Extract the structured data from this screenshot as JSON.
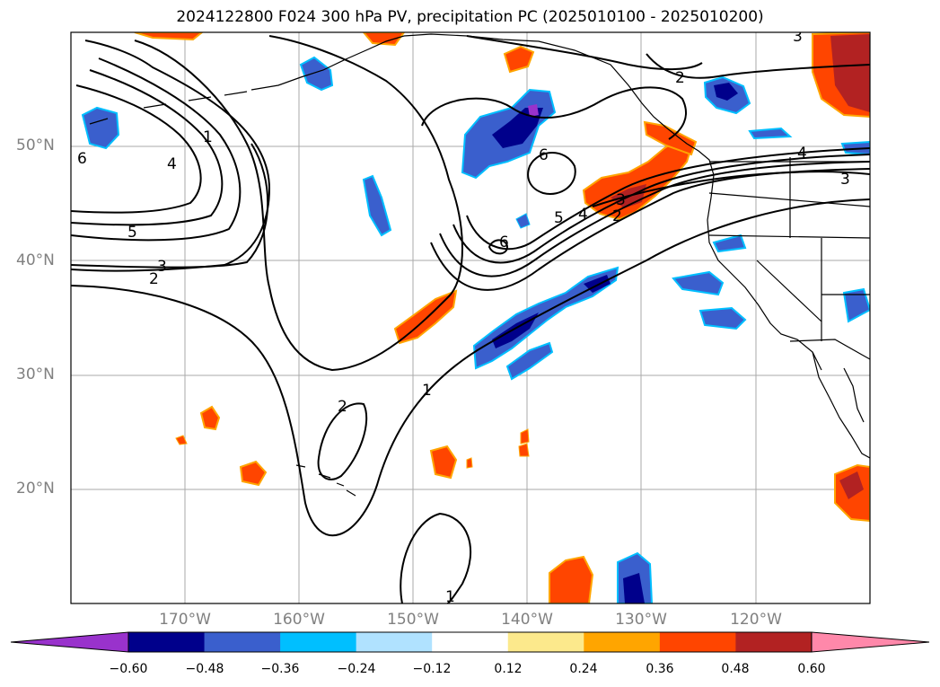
{
  "title": "2024122800 F024 300 hPa PV, precipitation PC (2025010100 - 2025010200)",
  "lat_ticks": [
    "50°N",
    "40°N",
    "30°N",
    "20°N"
  ],
  "lon_ticks": [
    "170°W",
    "160°W",
    "150°W",
    "140°W",
    "130°W",
    "120°W"
  ],
  "contour_labels": [
    "1",
    "2",
    "3",
    "4",
    "5",
    "6"
  ],
  "colorbar": {
    "ticks": [
      "−0.60",
      "−0.48",
      "−0.36",
      "−0.24",
      "−0.12",
      "0.12",
      "0.24",
      "0.36",
      "0.48",
      "0.60"
    ],
    "colors": [
      "#9932cc",
      "#00008b",
      "#3a5fcd",
      "#00bfff",
      "#b0e2ff",
      "#ffffff",
      "#fce98c",
      "#ffa500",
      "#ff4500",
      "#b22222",
      "#ff88aa"
    ]
  },
  "map": {
    "extent_lon": [
      -180,
      -110
    ],
    "extent_lat": [
      10,
      60
    ],
    "grid_color": "#aaaaaa",
    "contour_color": "#000000"
  }
}
